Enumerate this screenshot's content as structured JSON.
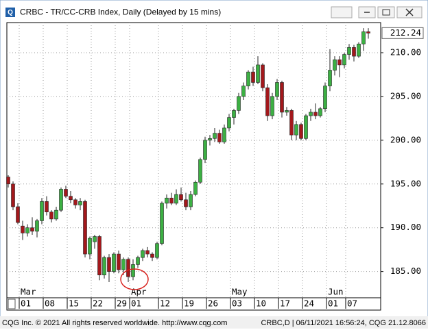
{
  "chart_data": {
    "type": "candlestick",
    "title": "CRBC - TR/CC-CRB Index, Daily (Delayed by 15 mins)",
    "footer_left": "CQG Inc. © 2021 All rights reserved worldwide. http://www.cqg.com",
    "footer_right": "CRBC,D | 06/11/2021 16:56:24, CQG 21.12.8066",
    "up_color": "#3cb043",
    "down_color": "#a3181c",
    "grid": true,
    "categories": [
      null,
      null,
      null,
      "01",
      null,
      null,
      null,
      null,
      "08",
      null,
      null,
      null,
      null,
      "15",
      null,
      null,
      null,
      null,
      "22",
      null,
      null,
      null,
      null,
      "29",
      null,
      null,
      "01",
      null,
      null,
      null,
      null,
      null,
      "12",
      null,
      null,
      null,
      null,
      "19",
      null,
      null,
      null,
      null,
      "26",
      null,
      null,
      null,
      null,
      "03",
      null,
      null,
      null,
      null,
      "10",
      null,
      null,
      null,
      null,
      "17",
      null,
      null,
      null,
      null,
      "24",
      null,
      null,
      null,
      null,
      "01",
      null,
      null,
      null,
      "07",
      null,
      null,
      null,
      null
    ],
    "months": [
      null,
      null,
      null,
      "Mar",
      null,
      null,
      null,
      null,
      null,
      null,
      null,
      null,
      null,
      null,
      null,
      null,
      null,
      null,
      null,
      null,
      null,
      null,
      null,
      null,
      null,
      null,
      "Apr",
      null,
      null,
      null,
      null,
      null,
      null,
      null,
      null,
      null,
      null,
      null,
      null,
      null,
      null,
      null,
      null,
      null,
      null,
      null,
      null,
      "May",
      null,
      null,
      null,
      null,
      null,
      null,
      null,
      null,
      null,
      null,
      null,
      null,
      null,
      null,
      null,
      null,
      null,
      null,
      null,
      "Jun",
      null,
      null,
      null,
      null,
      null,
      null,
      null,
      null
    ],
    "open": [
      195.8,
      195.0,
      192.4,
      190.2,
      189.4,
      190.0,
      189.6,
      190.8,
      193.0,
      191.8,
      191.0,
      192.0,
      194.4,
      193.6,
      193.2,
      192.6,
      193.0,
      187.0,
      188.4,
      189.0,
      184.6,
      186.6,
      185.0,
      187.0,
      185.2,
      186.4,
      184.4,
      185.8,
      186.6,
      187.4,
      187.0,
      186.6,
      188.2,
      192.8,
      193.4,
      192.8,
      193.8,
      193.2,
      192.4,
      193.8,
      195.2,
      197.8,
      200.0,
      200.2,
      200.8,
      199.8,
      201.4,
      202.6,
      203.4,
      205.0,
      206.2,
      207.8,
      206.6,
      208.6,
      206.0,
      202.8,
      205.0,
      206.6,
      203.2,
      203.4,
      200.6,
      201.8,
      200.2,
      202.8,
      203.2,
      202.8,
      203.6,
      206.2,
      208.0,
      209.2,
      208.6,
      209.8,
      210.6,
      209.6,
      211.0,
      212.4
    ],
    "high": [
      196.0,
      195.3,
      192.8,
      190.8,
      190.4,
      191.2,
      191.0,
      193.4,
      193.6,
      192.0,
      192.4,
      194.6,
      194.8,
      194.2,
      193.4,
      193.4,
      193.2,
      189.0,
      189.2,
      189.2,
      186.8,
      187.0,
      187.2,
      187.4,
      186.6,
      186.6,
      186.4,
      186.8,
      187.6,
      187.8,
      187.2,
      188.4,
      193.0,
      193.8,
      194.0,
      194.4,
      194.6,
      194.0,
      194.2,
      195.4,
      198.0,
      200.4,
      200.6,
      201.4,
      201.2,
      201.8,
      203.0,
      203.6,
      205.4,
      206.6,
      208.0,
      208.4,
      209.6,
      208.8,
      206.4,
      205.4,
      207.0,
      206.8,
      203.8,
      203.6,
      202.2,
      202.0,
      203.0,
      203.6,
      204.2,
      203.8,
      206.6,
      210.4,
      209.6,
      209.6,
      210.0,
      211.0,
      210.9,
      211.2,
      212.8,
      212.8
    ],
    "low": [
      194.6,
      192.0,
      190.4,
      188.6,
      189.0,
      189.2,
      188.9,
      190.4,
      191.4,
      190.6,
      190.8,
      191.8,
      193.4,
      192.8,
      192.2,
      192.0,
      186.6,
      186.4,
      187.6,
      184.0,
      184.2,
      183.8,
      184.8,
      184.8,
      184.6,
      183.8,
      184.0,
      185.4,
      186.2,
      186.6,
      186.2,
      186.4,
      188.0,
      192.2,
      192.6,
      192.6,
      193.0,
      192.0,
      192.0,
      193.6,
      195.0,
      197.4,
      199.4,
      199.8,
      199.6,
      199.6,
      201.0,
      201.8,
      203.0,
      204.6,
      205.8,
      206.2,
      206.4,
      205.6,
      202.2,
      202.4,
      204.6,
      202.6,
      202.8,
      200.0,
      200.0,
      200.0,
      200.0,
      202.2,
      202.4,
      202.6,
      203.2,
      205.6,
      207.4,
      207.2,
      208.2,
      209.2,
      209.0,
      209.4,
      210.2,
      211.6
    ],
    "close": [
      195.0,
      192.4,
      190.6,
      189.4,
      190.0,
      189.6,
      190.8,
      193.0,
      191.8,
      191.0,
      192.0,
      194.4,
      193.6,
      193.2,
      192.6,
      193.0,
      187.0,
      188.8,
      189.0,
      184.6,
      186.6,
      185.0,
      187.0,
      185.2,
      186.4,
      184.4,
      185.8,
      186.6,
      187.4,
      187.0,
      186.6,
      188.2,
      192.8,
      193.4,
      192.8,
      193.8,
      193.2,
      192.4,
      193.8,
      195.2,
      197.8,
      200.0,
      200.2,
      200.8,
      199.8,
      201.4,
      202.6,
      203.4,
      205.0,
      206.2,
      207.8,
      206.6,
      208.6,
      206.0,
      202.8,
      205.0,
      206.6,
      203.2,
      203.4,
      200.6,
      201.8,
      200.2,
      202.8,
      203.2,
      202.8,
      203.6,
      206.2,
      208.0,
      209.2,
      208.6,
      209.8,
      210.6,
      209.6,
      211.0,
      212.4,
      212.24
    ],
    "ylim": [
      182,
      213.44
    ],
    "yticks": [
      {
        "value": 185,
        "label": "185.00"
      },
      {
        "value": 190,
        "label": "190.00"
      },
      {
        "value": 195,
        "label": "195.00"
      },
      {
        "value": 200,
        "label": "200.00"
      },
      {
        "value": 205,
        "label": "205.00"
      },
      {
        "value": 210,
        "label": "210.00"
      }
    ]
  }
}
